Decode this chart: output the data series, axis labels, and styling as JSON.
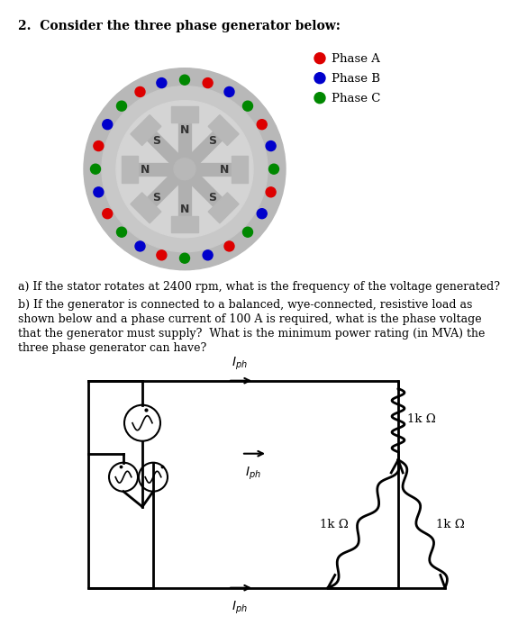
{
  "title": "2.  Consider the three phase generator below:",
  "question_a": "a) If the stator rotates at 2400 rpm, what is the frequency of the voltage generated?",
  "question_b1": "b) If the generator is connected to a balanced, wye-connected, resistive load as",
  "question_b2": "shown below and a phase current of 100 A is required, what is the phase voltage",
  "question_b3": "that the generator must supply?  What is the minimum power rating (in MVA) the",
  "question_b4": "three phase generator can have?",
  "legend_phase_a": "Phase A",
  "legend_phase_b": "Phase B",
  "legend_phase_c": "Phase C",
  "color_phase_a": "#dd0000",
  "color_phase_b": "#0000cc",
  "color_phase_c": "#008800",
  "bg_color": "#ffffff",
  "text_color": "#000000",
  "resistor_label": "1k Ω",
  "dot_pattern": [
    "G",
    "R",
    "B",
    "G",
    "R",
    "B",
    "G",
    "R",
    "B",
    "G",
    "R",
    "B",
    "G",
    "R",
    "B",
    "G",
    "R",
    "B",
    "G",
    "R",
    "B",
    "G",
    "R",
    "B"
  ]
}
